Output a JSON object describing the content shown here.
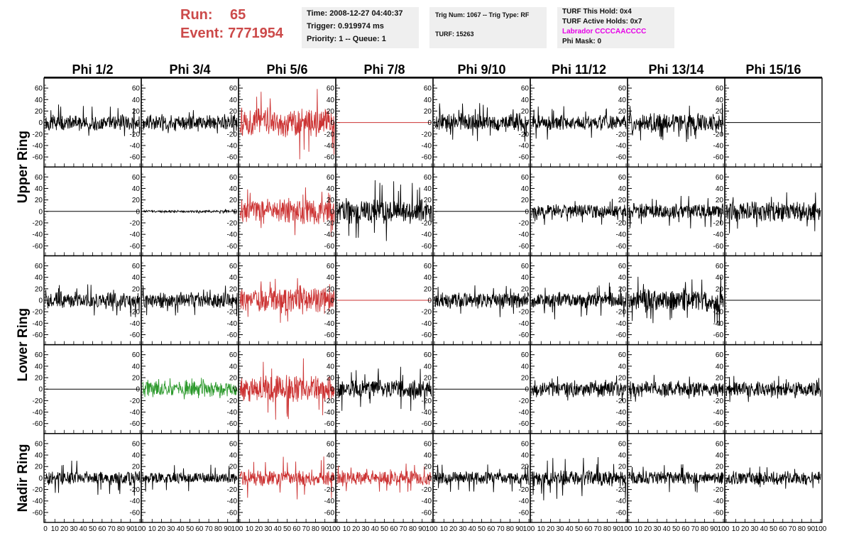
{
  "header": {
    "run_label": "Run:",
    "run_value": "65",
    "event_label": "Event:",
    "event_value": "7771954",
    "time_line": "Time: 2008-12-27 04:40:37",
    "trigger_line": "Trigger: 0.919974 ms",
    "priority_line": "Priority: 1 -- Queue: 1",
    "trig_line": "Trig Num: 1067 -- Trig Type: RF",
    "turf_line": "TURF: 15263",
    "turf_hold_line": "TURF This Hold: 0x4",
    "turf_active_line": "TURF Active Holds: 0x7",
    "labrador_line": "Labrador CCCCAACCCC",
    "phi_mask_line": "Phi Mask: 0"
  },
  "chart_data": {
    "type": "line",
    "columns": [
      "Phi 1/2",
      "Phi 3/4",
      "Phi 5/6",
      "Phi 7/8",
      "Phi 9/10",
      "Phi 11/12",
      "Phi 13/14",
      "Phi 15/16"
    ],
    "ring_labels": [
      {
        "label": "Upper Ring",
        "rows": [
          0,
          1
        ]
      },
      {
        "label": "Lower Ring",
        "rows": [
          2,
          3
        ]
      },
      {
        "label": "Nadir Ring",
        "rows": [
          4
        ]
      }
    ],
    "xlim": [
      0,
      100
    ],
    "ylim": [
      -70,
      70
    ],
    "y_ticks": [
      -60,
      -40,
      -20,
      0,
      20,
      40,
      60
    ],
    "x_tick_labels": [
      "0",
      "10",
      "20",
      "30",
      "40",
      "50",
      "60",
      "70",
      "80",
      "90",
      "100"
    ],
    "colors": {
      "black": "#000000",
      "red": "#cc3333",
      "green": "#2e9a2e"
    },
    "panels": [
      [
        {
          "color": "black",
          "amp": 14,
          "spike": 32,
          "flat": false
        },
        {
          "color": "black",
          "amp": 14,
          "spike": 24,
          "flat": false
        },
        {
          "color": "red",
          "amp": 26,
          "spike": 68,
          "flat": false
        },
        {
          "color": "red",
          "amp": 0,
          "spike": 0,
          "flat": true
        },
        {
          "color": "black",
          "amp": 16,
          "spike": 34,
          "flat": false
        },
        {
          "color": "black",
          "amp": 13,
          "spike": 30,
          "flat": false
        },
        {
          "color": "black",
          "amp": 18,
          "spike": 36,
          "flat": false
        },
        {
          "color": "black",
          "amp": 0,
          "spike": 0,
          "flat": true
        }
      ],
      [
        {
          "color": "black",
          "amp": 0,
          "spike": 0,
          "flat": true
        },
        {
          "color": "black",
          "amp": 2,
          "spike": 4,
          "flat": false
        },
        {
          "color": "red",
          "amp": 22,
          "spike": 45,
          "flat": false
        },
        {
          "color": "black",
          "amp": 22,
          "spike": 55,
          "flat": false
        },
        {
          "color": "black",
          "amp": 0,
          "spike": 0,
          "flat": true
        },
        {
          "color": "black",
          "amp": 12,
          "spike": 24,
          "flat": false
        },
        {
          "color": "black",
          "amp": 14,
          "spike": 30,
          "flat": false
        },
        {
          "color": "black",
          "amp": 18,
          "spike": 40,
          "flat": false
        }
      ],
      [
        {
          "color": "black",
          "amp": 14,
          "spike": 30,
          "flat": false
        },
        {
          "color": "black",
          "amp": 14,
          "spike": 28,
          "flat": false
        },
        {
          "color": "red",
          "amp": 22,
          "spike": 40,
          "flat": false
        },
        {
          "color": "red",
          "amp": 0,
          "spike": 0,
          "flat": true
        },
        {
          "color": "black",
          "amp": 14,
          "spike": 30,
          "flat": false
        },
        {
          "color": "black",
          "amp": 14,
          "spike": 34,
          "flat": false
        },
        {
          "color": "black",
          "amp": 20,
          "spike": 45,
          "flat": false
        },
        {
          "color": "black",
          "amp": 0,
          "spike": 0,
          "flat": true
        }
      ],
      [
        {
          "color": "black",
          "amp": 0,
          "spike": 0,
          "flat": true
        },
        {
          "color": "green",
          "amp": 14,
          "spike": 22,
          "flat": false
        },
        {
          "color": "red",
          "amp": 24,
          "spike": 55,
          "flat": false
        },
        {
          "color": "black",
          "amp": 18,
          "spike": 40,
          "flat": false
        },
        {
          "color": "black",
          "amp": 0,
          "spike": 0,
          "flat": true
        },
        {
          "color": "black",
          "amp": 14,
          "spike": 24,
          "flat": false
        },
        {
          "color": "black",
          "amp": 14,
          "spike": 26,
          "flat": false
        },
        {
          "color": "black",
          "amp": 14,
          "spike": 24,
          "flat": false
        }
      ],
      [
        {
          "color": "black",
          "amp": 12,
          "spike": 32,
          "flat": false
        },
        {
          "color": "black",
          "amp": 10,
          "spike": 24,
          "flat": false
        },
        {
          "color": "red",
          "amp": 14,
          "spike": 40,
          "flat": false
        },
        {
          "color": "red",
          "amp": 14,
          "spike": 26,
          "flat": false
        },
        {
          "color": "black",
          "amp": 12,
          "spike": 26,
          "flat": false
        },
        {
          "color": "black",
          "amp": 14,
          "spike": 40,
          "flat": false
        },
        {
          "color": "black",
          "amp": 12,
          "spike": 26,
          "flat": false
        },
        {
          "color": "black",
          "amp": 12,
          "spike": 26,
          "flat": false
        }
      ]
    ]
  }
}
